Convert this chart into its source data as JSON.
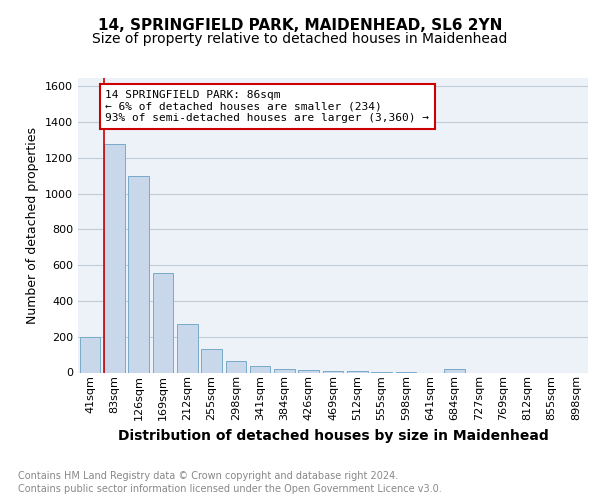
{
  "title": "14, SPRINGFIELD PARK, MAIDENHEAD, SL6 2YN",
  "subtitle": "Size of property relative to detached houses in Maidenhead",
  "xlabel": "Distribution of detached houses by size in Maidenhead",
  "ylabel": "Number of detached properties",
  "categories": [
    "41sqm",
    "83sqm",
    "126sqm",
    "169sqm",
    "212sqm",
    "255sqm",
    "298sqm",
    "341sqm",
    "384sqm",
    "426sqm",
    "469sqm",
    "512sqm",
    "555sqm",
    "598sqm",
    "641sqm",
    "684sqm",
    "727sqm",
    "769sqm",
    "812sqm",
    "855sqm",
    "898sqm"
  ],
  "values": [
    200,
    1280,
    1100,
    555,
    270,
    130,
    65,
    35,
    22,
    15,
    10,
    8,
    5,
    3,
    0,
    20,
    0,
    0,
    0,
    0,
    0
  ],
  "bar_color": "#c8d8ea",
  "bar_edge_color": "#7aaac8",
  "annotation_box_lines": [
    "14 SPRINGFIELD PARK: 86sqm",
    "← 6% of detached houses are smaller (234)",
    "93% of semi-detached houses are larger (3,360) →"
  ],
  "annotation_box_facecolor": "white",
  "annotation_box_edgecolor": "#cc0000",
  "red_line_color": "#cc0000",
  "grid_color": "#c0ccd8",
  "bg_color": "#edf2f8",
  "ylim": [
    0,
    1650
  ],
  "yticks": [
    0,
    200,
    400,
    600,
    800,
    1000,
    1200,
    1400,
    1600
  ],
  "footer_line1": "Contains HM Land Registry data © Crown copyright and database right 2024.",
  "footer_line2": "Contains public sector information licensed under the Open Government Licence v3.0.",
  "title_fontsize": 11,
  "subtitle_fontsize": 10,
  "xlabel_fontsize": 10,
  "ylabel_fontsize": 9,
  "tick_fontsize": 8,
  "ann_fontsize": 8,
  "footer_fontsize": 7
}
